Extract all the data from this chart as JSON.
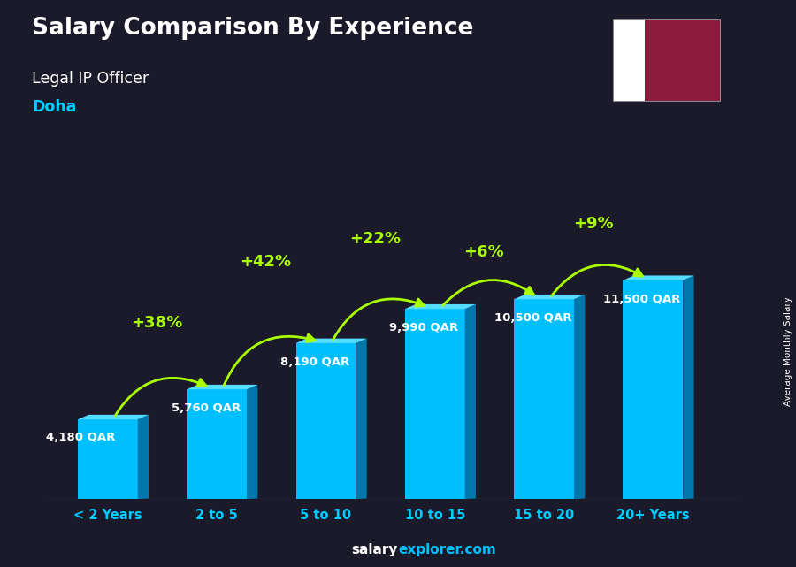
{
  "title": "Salary Comparison By Experience",
  "subtitle": "Legal IP Officer",
  "city": "Doha",
  "ylabel": "Average Monthly Salary",
  "categories": [
    "< 2 Years",
    "2 to 5",
    "5 to 10",
    "10 to 15",
    "15 to 20",
    "20+ Years"
  ],
  "values": [
    4180,
    5760,
    8190,
    9990,
    10500,
    11500
  ],
  "value_labels": [
    "4,180 QAR",
    "5,760 QAR",
    "8,190 QAR",
    "9,990 QAR",
    "10,500 QAR",
    "11,500 QAR"
  ],
  "pct_labels": [
    "+38%",
    "+42%",
    "+22%",
    "+6%",
    "+9%"
  ],
  "bar_color_face": "#00BFFF",
  "bar_color_side": "#0077AA",
  "bar_color_top": "#55DDFF",
  "bg_color": "#1a1a2a",
  "title_color": "#ffffff",
  "subtitle_color": "#ffffff",
  "city_color": "#00CCFF",
  "value_label_color": "#ffffff",
  "pct_label_color": "#aaff00",
  "arrow_color": "#aaff00",
  "footer_salary_color": "#ffffff",
  "footer_explorer_color": "#00BFFF",
  "xtick_color": "#00CCFF",
  "ylim": [
    0,
    15500
  ],
  "qatar_flag_maroon": "#8D1B3D",
  "qatar_flag_white": "#ffffff"
}
